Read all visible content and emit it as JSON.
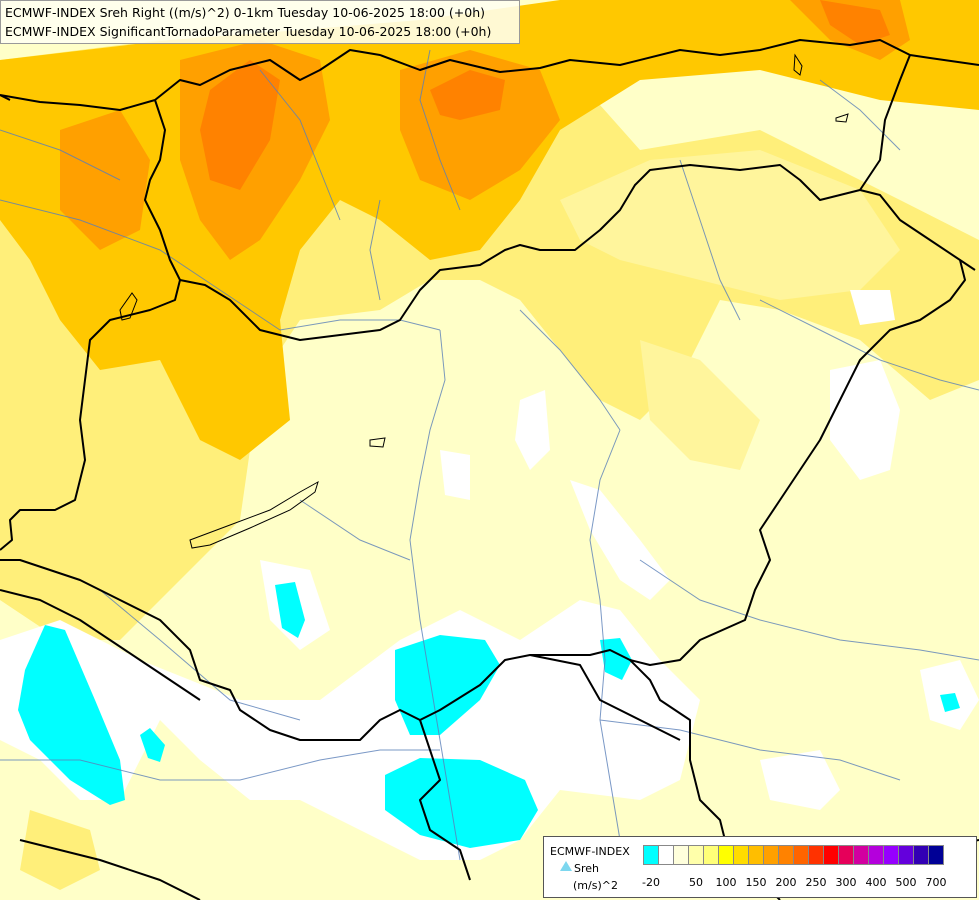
{
  "header": {
    "line1": "ECMWF-INDEX Sreh Right ((m/s)^2) 0-1km Tuesday 10-06-2025 18:00 (+0h)",
    "line2": "ECMWF-INDEX SignificantTornadoParameter Tuesday 10-06-2025 18:00 (+0h)"
  },
  "legend": {
    "source": "ECMWF-INDEX",
    "variable": "Sreh",
    "unit": "(m/s)^2",
    "icon": "triangle-icon",
    "colors": [
      "#00ffff",
      "#ffffff",
      "#ffffdc",
      "#ffffaa",
      "#ffff78",
      "#ffff00",
      "#ffdc00",
      "#ffbe00",
      "#ffa000",
      "#ff8200",
      "#ff6400",
      "#ff3200",
      "#ff0000",
      "#e6005a",
      "#d200a0",
      "#b400dc",
      "#9600ff",
      "#6400dc",
      "#3200b4",
      "#000096"
    ],
    "ticks": [
      "-20",
      "50",
      "100",
      "150",
      "200",
      "250",
      "300",
      "400",
      "500",
      "700"
    ]
  }
}
